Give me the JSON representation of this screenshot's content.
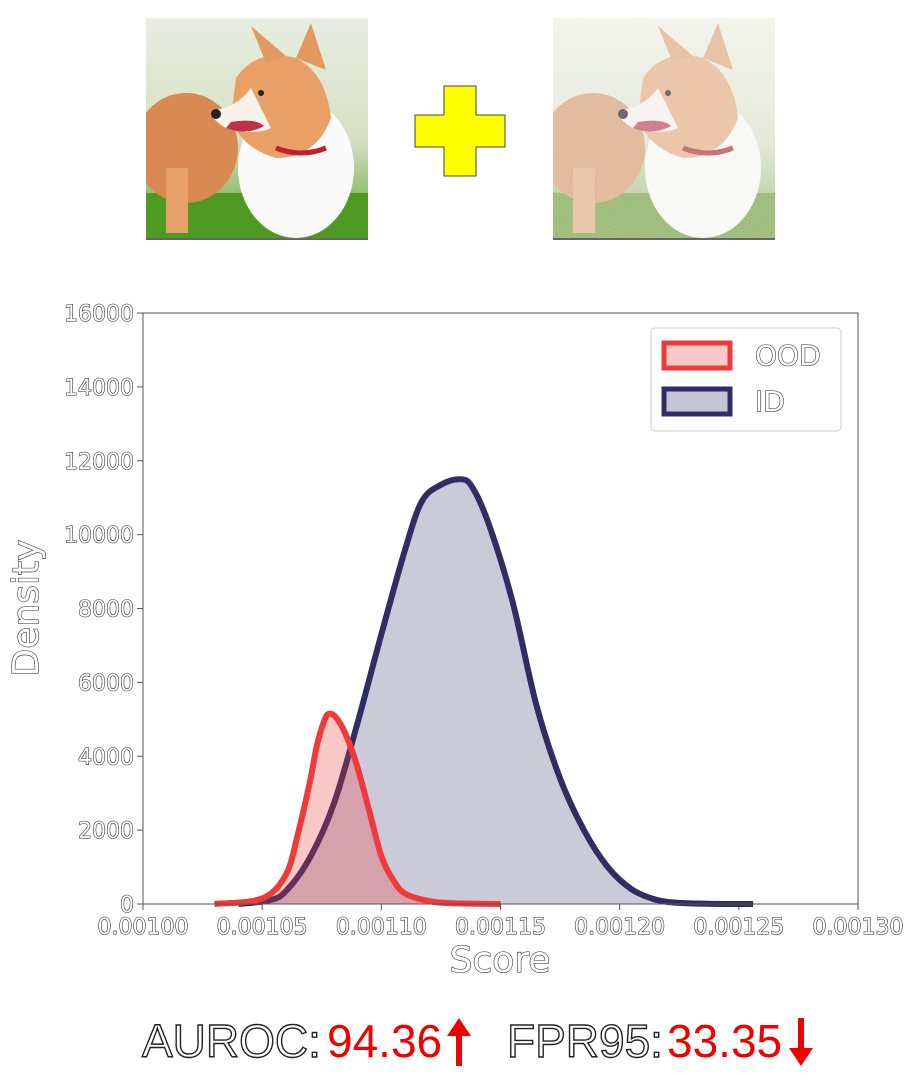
{
  "images": [
    {
      "name": "clean-image",
      "subject": "corgi dog"
    },
    {
      "name": "noisy-image",
      "subject": "corgi dog with added noise"
    }
  ],
  "operator": {
    "symbol": "plus",
    "color": "#ffff00"
  },
  "chart_data": {
    "type": "area",
    "xlabel": "Score",
    "ylabel": "Density",
    "xlim": [
      0.001,
      0.0013
    ],
    "ylim": [
      0,
      16000
    ],
    "x_ticks": [
      "0.00100",
      "0.00105",
      "0.00110",
      "0.00115",
      "0.00120",
      "0.00125",
      "0.00130"
    ],
    "y_ticks": [
      "0",
      "2000",
      "4000",
      "6000",
      "8000",
      "10000",
      "12000",
      "14000",
      "16000"
    ],
    "legend_position": "top-right",
    "grid": false,
    "series": [
      {
        "name": "OOD",
        "color": "#f0393b",
        "points": [
          [
            0.00103,
            0
          ],
          [
            0.00105,
            150
          ],
          [
            0.00106,
            800
          ],
          [
            0.001065,
            1900
          ],
          [
            0.00107,
            3300
          ],
          [
            0.001073,
            4300
          ],
          [
            0.001076,
            4950
          ],
          [
            0.001078,
            5150
          ],
          [
            0.001081,
            5050
          ],
          [
            0.001085,
            4600
          ],
          [
            0.00109,
            3700
          ],
          [
            0.001095,
            2500
          ],
          [
            0.0011,
            1300
          ],
          [
            0.001105,
            650
          ],
          [
            0.00111,
            280
          ],
          [
            0.00112,
            80
          ],
          [
            0.00113,
            20
          ],
          [
            0.00115,
            0
          ]
        ]
      },
      {
        "name": "ID",
        "color": "#2f2d62",
        "points": [
          [
            0.00104,
            0
          ],
          [
            0.001053,
            100
          ],
          [
            0.00106,
            350
          ],
          [
            0.00107,
            1250
          ],
          [
            0.00108,
            2700
          ],
          [
            0.00109,
            4900
          ],
          [
            0.0011,
            7300
          ],
          [
            0.00111,
            9600
          ],
          [
            0.001117,
            10900
          ],
          [
            0.001125,
            11350
          ],
          [
            0.001133,
            11500
          ],
          [
            0.001138,
            11300
          ],
          [
            0.001145,
            10300
          ],
          [
            0.001155,
            8200
          ],
          [
            0.001165,
            5400
          ],
          [
            0.001175,
            3400
          ],
          [
            0.001185,
            2000
          ],
          [
            0.001195,
            1000
          ],
          [
            0.001205,
            400
          ],
          [
            0.001215,
            120
          ],
          [
            0.001225,
            30
          ],
          [
            0.00124,
            5
          ],
          [
            0.001256,
            0
          ]
        ]
      }
    ]
  },
  "metrics": {
    "auroc_label": "AUROC:",
    "auroc_value": "94.36",
    "auroc_direction": "up",
    "fpr_label": "FPR95:",
    "fpr_value": "33.35",
    "fpr_direction": "down",
    "value_color": "#f00000"
  }
}
